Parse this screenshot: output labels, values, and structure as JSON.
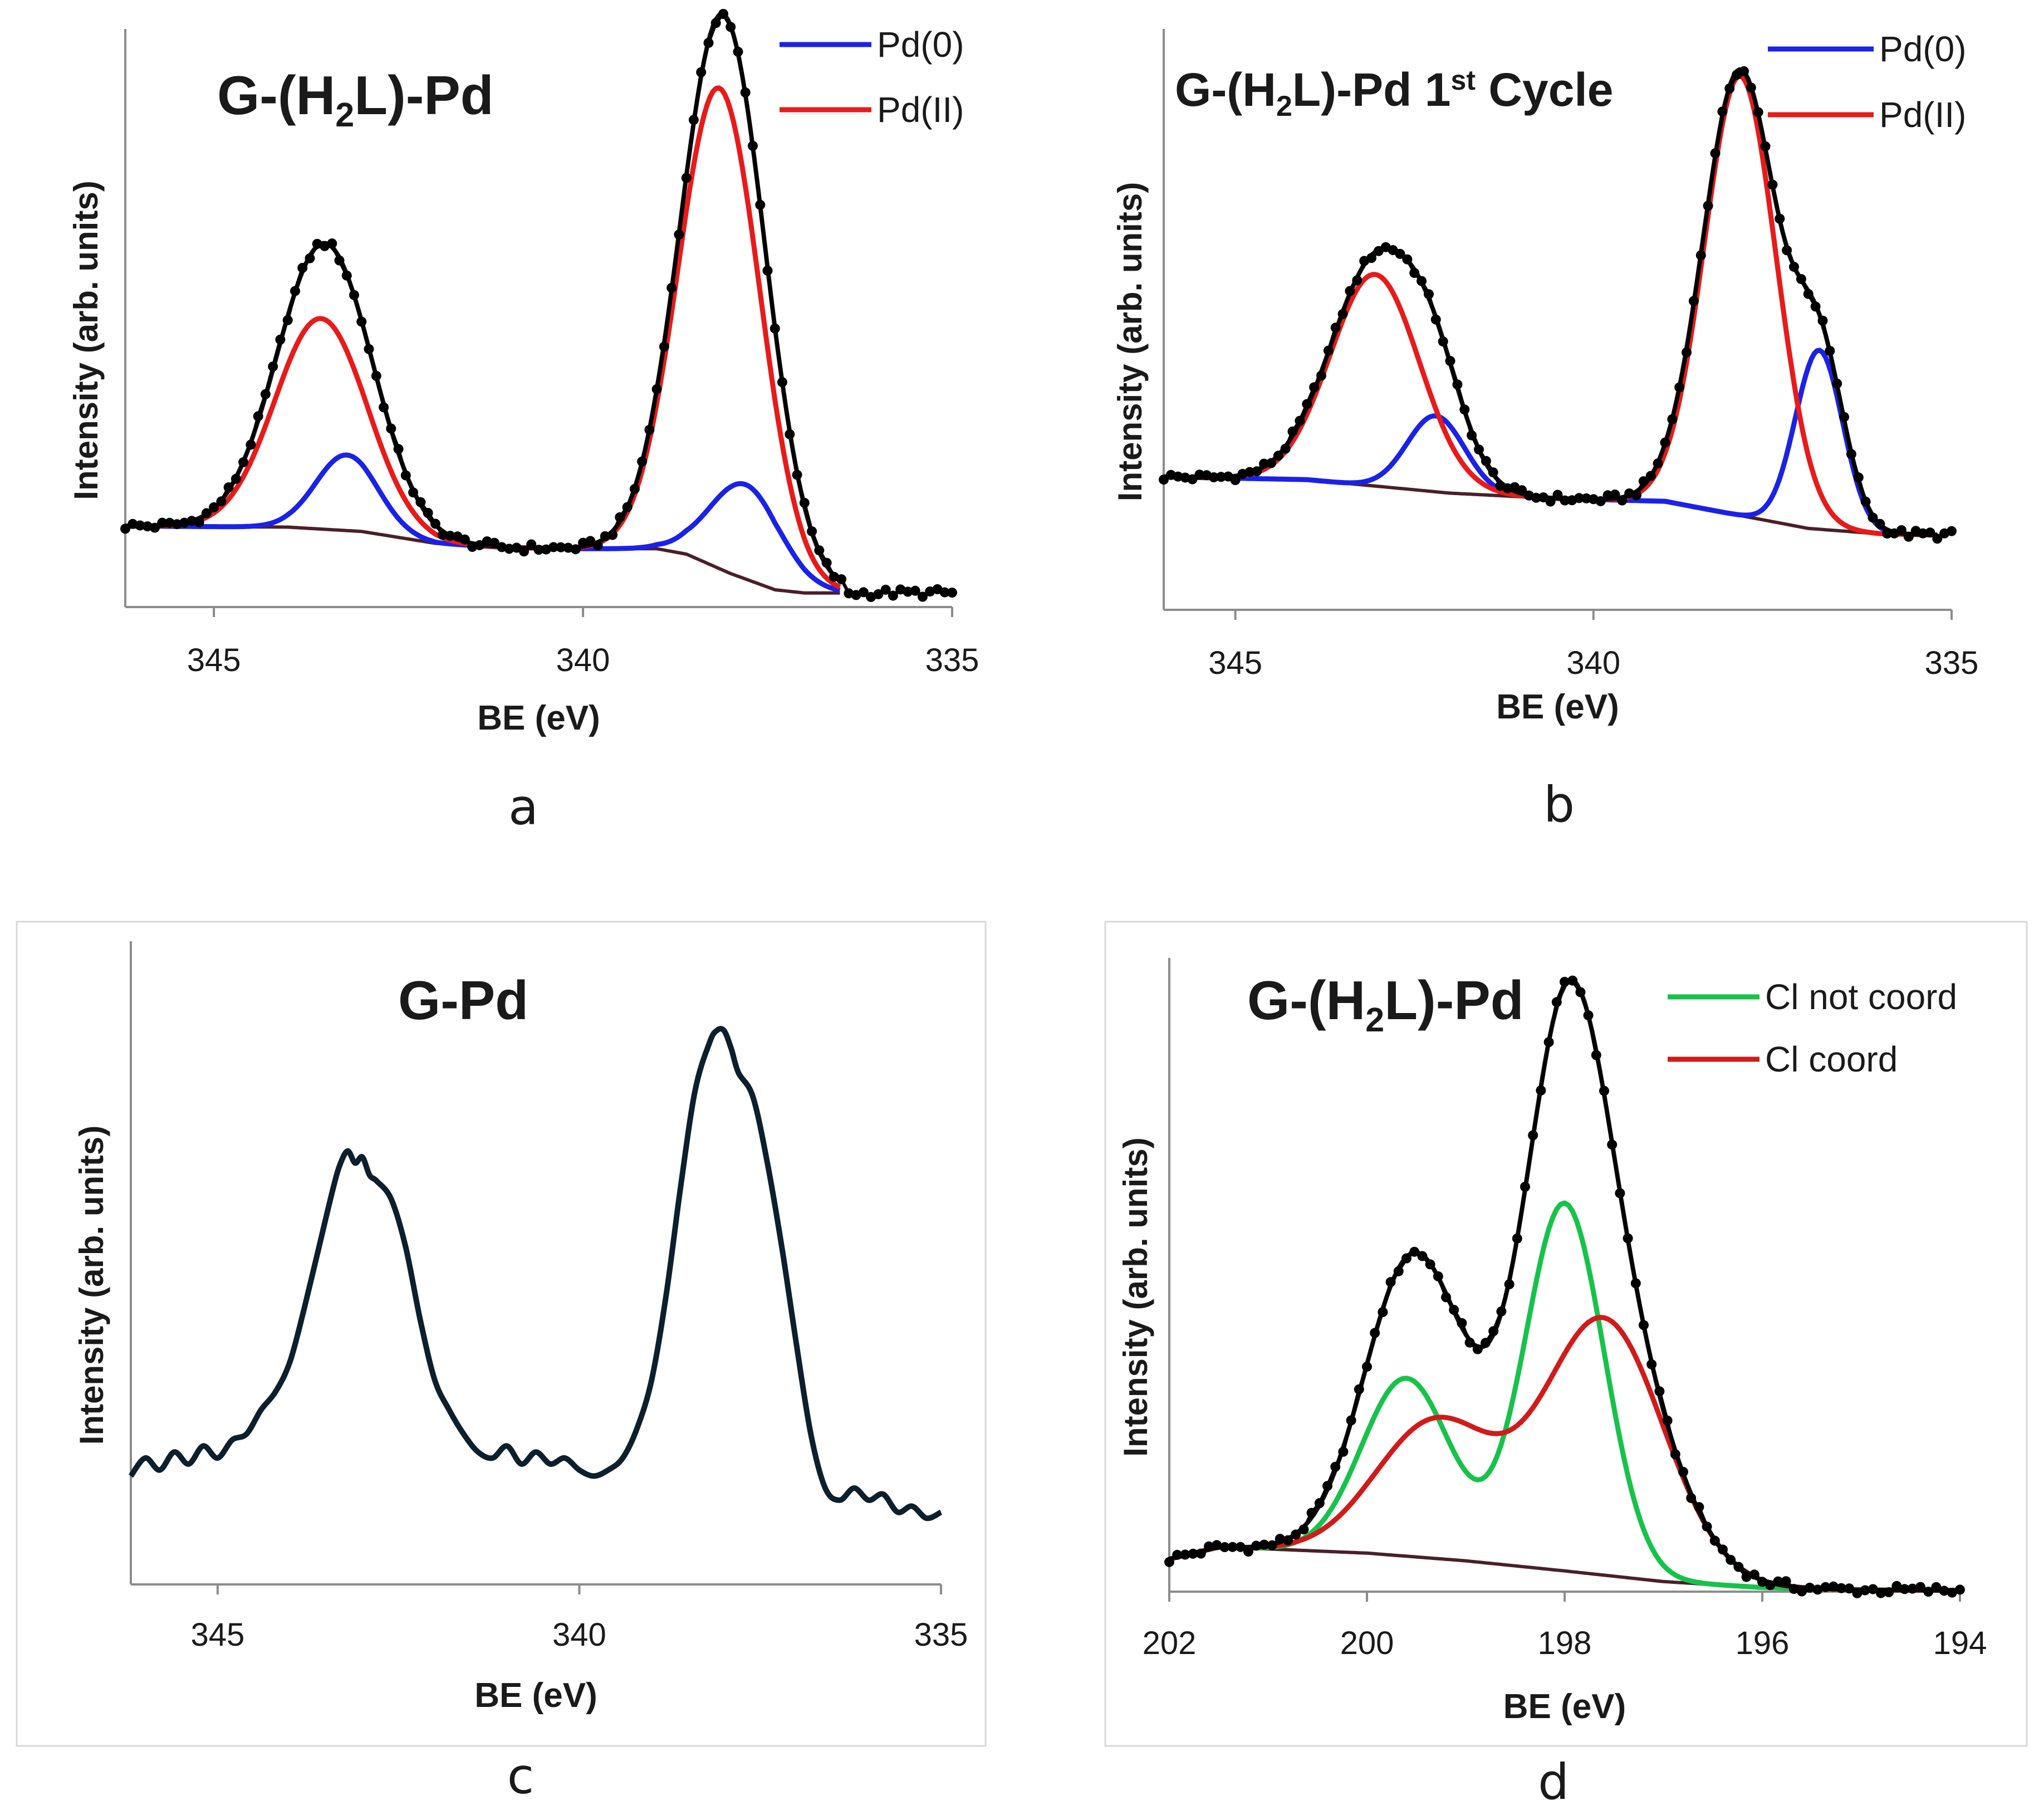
{
  "figure": {
    "panels_order": [
      "a",
      "b",
      "c",
      "d"
    ]
  },
  "chart_data": [
    {
      "id": "a",
      "type": "line",
      "panel_letter": "a",
      "title": "G-(H2L)-Pd",
      "title_parts": {
        "main": "G-(H",
        "sub": "2",
        "rest": "L)-Pd",
        "sup": ""
      },
      "xlabel_bold": "BE",
      "xlabel_rest": " (eV)",
      "ylabel": "Intensity (arb. units)",
      "x_reversed": true,
      "xlim": [
        346.2,
        335
      ],
      "ylim": [
        0,
        1.05
      ],
      "xticks": [
        345,
        340,
        335
      ],
      "legend_position": "top-right",
      "legend": [
        {
          "label": "Pd(0)",
          "color": "#1a22e8"
        },
        {
          "label": "Pd(II)",
          "color": "#e81a1a"
        }
      ],
      "baseline": [
        [
          346.2,
          0.15
        ],
        [
          344,
          0.148
        ],
        [
          343,
          0.14
        ],
        [
          342,
          0.118
        ],
        [
          341,
          0.11
        ],
        [
          340,
          0.108
        ],
        [
          339,
          0.108
        ],
        [
          338.6,
          0.098
        ],
        [
          338,
          0.062
        ],
        [
          337.4,
          0.032
        ],
        [
          337,
          0.026
        ],
        [
          335.8,
          0.026
        ]
      ],
      "baseline_end": 336.5,
      "components": [
        {
          "name": "Pd(0)",
          "color": "#1a22e8",
          "peaks": [
            {
              "center": 343.2,
              "height": 0.14,
              "width": 0.42
            },
            {
              "center": 337.8,
              "height": 0.175,
              "width": 0.48
            }
          ]
        },
        {
          "name": "Pd(II)",
          "color": "#e81a1a",
          "peaks": [
            {
              "center": 343.55,
              "height": 0.39,
              "width": 0.62
            },
            {
              "center": 338.15,
              "height": 0.89,
              "width": 0.55
            }
          ]
        }
      ],
      "envelope_peaks": [
        {
          "center": 343.5,
          "height": 0.53,
          "width": 0.64
        },
        {
          "center": 338.1,
          "height": 1.03,
          "width": 0.57
        }
      ],
      "measured": {
        "x_start": 346.2,
        "x_end": 335.0,
        "step": 0.1
      }
    },
    {
      "id": "b",
      "type": "line",
      "panel_letter": "b",
      "title": "G-(H2L)-Pd 1st Cycle",
      "title_parts": {
        "main": "G-(H",
        "sub": "2",
        "rest": "L)-Pd 1",
        "sup": "st",
        "tail": " Cycle"
      },
      "xlabel_bold": "BE",
      "xlabel_rest": " (eV)",
      "ylabel": "Intensity (arb. units)",
      "x_reversed": true,
      "xlim": [
        346.0,
        335
      ],
      "ylim": [
        0,
        1.05
      ],
      "xticks": [
        345,
        340,
        335
      ],
      "legend_position": "top-right",
      "legend": [
        {
          "label": "Pd(0)",
          "color": "#1a22e8"
        },
        {
          "label": "Pd(II)",
          "color": "#e81a1a"
        }
      ],
      "baseline": [
        [
          346.0,
          0.245
        ],
        [
          344,
          0.24
        ],
        [
          342,
          0.215
        ],
        [
          340.5,
          0.205
        ],
        [
          339,
          0.2
        ],
        [
          338,
          0.175
        ],
        [
          337,
          0.15
        ],
        [
          336,
          0.14
        ],
        [
          335.2,
          0.138
        ]
      ],
      "baseline_end": 335.2,
      "components": [
        {
          "name": "Pd(0)",
          "color": "#1a22e8",
          "peaks": [
            {
              "center": 342.2,
              "height": 0.14,
              "width": 0.4
            },
            {
              "center": 336.85,
              "height": 0.33,
              "width": 0.33
            }
          ]
        },
        {
          "name": "Pd(II)",
          "color": "#e81a1a",
          "peaks": [
            {
              "center": 343.05,
              "height": 0.39,
              "width": 0.62
            },
            {
              "center": 337.95,
              "height": 0.81,
              "width": 0.5
            }
          ]
        }
      ],
      "envelope_peaks": [
        {
          "center": 343.0,
          "height": 0.42,
          "width": 0.66
        },
        {
          "center": 342.2,
          "height": 0.12,
          "width": 0.4
        },
        {
          "center": 337.95,
          "height": 0.82,
          "width": 0.52
        },
        {
          "center": 336.85,
          "height": 0.31,
          "width": 0.35
        }
      ],
      "measured": {
        "x_start": 346.0,
        "x_end": 335.0,
        "step": 0.1
      }
    },
    {
      "id": "c",
      "type": "line",
      "panel_letter": "c",
      "title": "G-Pd",
      "title_parts": {
        "main": "G-Pd",
        "sub": "",
        "rest": "",
        "sup": ""
      },
      "xlabel_bold": "BE",
      "xlabel_rest": " (eV)",
      "ylabel": "Intensity (arb. units)",
      "x_reversed": true,
      "xlim": [
        346.2,
        335
      ],
      "ylim": [
        0,
        1.05
      ],
      "xticks": [
        345,
        340,
        335
      ],
      "legend": [],
      "series": [
        {
          "name": "G-Pd",
          "color": "#0d1f2d",
          "points": [
            [
              346.2,
              0.18
            ],
            [
              346.0,
              0.21
            ],
            [
              345.8,
              0.19
            ],
            [
              345.6,
              0.22
            ],
            [
              345.4,
              0.2
            ],
            [
              345.2,
              0.23
            ],
            [
              345.0,
              0.21
            ],
            [
              344.8,
              0.24
            ],
            [
              344.6,
              0.25
            ],
            [
              344.4,
              0.29
            ],
            [
              344.2,
              0.32
            ],
            [
              344.0,
              0.37
            ],
            [
              343.8,
              0.46
            ],
            [
              343.6,
              0.56
            ],
            [
              343.4,
              0.66
            ],
            [
              343.3,
              0.7
            ],
            [
              343.2,
              0.72
            ],
            [
              343.1,
              0.7
            ],
            [
              343.0,
              0.71
            ],
            [
              342.9,
              0.68
            ],
            [
              342.8,
              0.67
            ],
            [
              342.6,
              0.64
            ],
            [
              342.4,
              0.56
            ],
            [
              342.2,
              0.44
            ],
            [
              342.0,
              0.34
            ],
            [
              341.8,
              0.29
            ],
            [
              341.6,
              0.25
            ],
            [
              341.4,
              0.22
            ],
            [
              341.2,
              0.21
            ],
            [
              341.0,
              0.23
            ],
            [
              340.8,
              0.2
            ],
            [
              340.6,
              0.22
            ],
            [
              340.4,
              0.2
            ],
            [
              340.2,
              0.21
            ],
            [
              340.0,
              0.19
            ],
            [
              339.8,
              0.18
            ],
            [
              339.6,
              0.19
            ],
            [
              339.4,
              0.21
            ],
            [
              339.2,
              0.26
            ],
            [
              339.0,
              0.34
            ],
            [
              338.8,
              0.48
            ],
            [
              338.6,
              0.66
            ],
            [
              338.4,
              0.82
            ],
            [
              338.2,
              0.9
            ],
            [
              338.1,
              0.92
            ],
            [
              338.0,
              0.92
            ],
            [
              337.9,
              0.89
            ],
            [
              337.8,
              0.85
            ],
            [
              337.6,
              0.81
            ],
            [
              337.4,
              0.7
            ],
            [
              337.2,
              0.56
            ],
            [
              337.0,
              0.4
            ],
            [
              336.8,
              0.25
            ],
            [
              336.6,
              0.16
            ],
            [
              336.4,
              0.14
            ],
            [
              336.2,
              0.16
            ],
            [
              336.0,
              0.14
            ],
            [
              335.8,
              0.15
            ],
            [
              335.6,
              0.12
            ],
            [
              335.4,
              0.13
            ],
            [
              335.2,
              0.11
            ],
            [
              335.0,
              0.12
            ]
          ]
        }
      ]
    },
    {
      "id": "d",
      "type": "line",
      "panel_letter": "d",
      "title": "G-(H2L)-Pd",
      "title_parts": {
        "main": "G-(H",
        "sub": "2",
        "rest": "L)-Pd",
        "sup": ""
      },
      "xlabel_bold": "BE",
      "xlabel_rest": " (eV)",
      "ylabel": "Intensity (arb. units)",
      "x_reversed": true,
      "xlim": [
        202,
        194
      ],
      "ylim": [
        0,
        1.05
      ],
      "xticks": [
        202,
        200,
        198,
        196,
        194
      ],
      "legend_position": "top-right",
      "legend": [
        {
          "label": "Cl not coord",
          "color": "#17c24a"
        },
        {
          "label": "Cl coord",
          "color": "#d11a1a"
        }
      ],
      "baseline": [
        [
          202,
          0.055
        ],
        [
          201.5,
          0.075
        ],
        [
          201,
          0.072
        ],
        [
          200,
          0.065
        ],
        [
          199,
          0.052
        ],
        [
          198,
          0.035
        ],
        [
          197,
          0.017
        ],
        [
          196,
          0.007
        ],
        [
          195,
          0.003
        ],
        [
          194,
          0.002
        ]
      ],
      "baseline_end": 194,
      "components": [
        {
          "name": "Cl not coord",
          "color": "#17c24a",
          "peaks": [
            {
              "center": 199.6,
              "height": 0.3,
              "width": 0.45
            },
            {
              "center": 198.0,
              "height": 0.62,
              "width": 0.4
            }
          ]
        },
        {
          "name": "Cl coord",
          "color": "#d11a1a",
          "peaks": [
            {
              "center": 199.3,
              "height": 0.23,
              "width": 0.6
            },
            {
              "center": 197.6,
              "height": 0.43,
              "width": 0.6
            }
          ]
        }
      ],
      "envelope_peaks": [
        {
          "center": 199.6,
          "height": 0.3,
          "width": 0.45
        },
        {
          "center": 198.0,
          "height": 0.62,
          "width": 0.4
        },
        {
          "center": 199.3,
          "height": 0.23,
          "width": 0.6
        },
        {
          "center": 197.6,
          "height": 0.43,
          "width": 0.6
        }
      ],
      "measured": {
        "x_start": 202.0,
        "x_end": 194.0,
        "step": 0.08
      }
    }
  ],
  "colors": {
    "envelope": "#111111",
    "dots": "#000000",
    "axis": "#8c8c8c",
    "baseline": "#4a1f2a",
    "panel_frame": "#d8d8d8"
  }
}
